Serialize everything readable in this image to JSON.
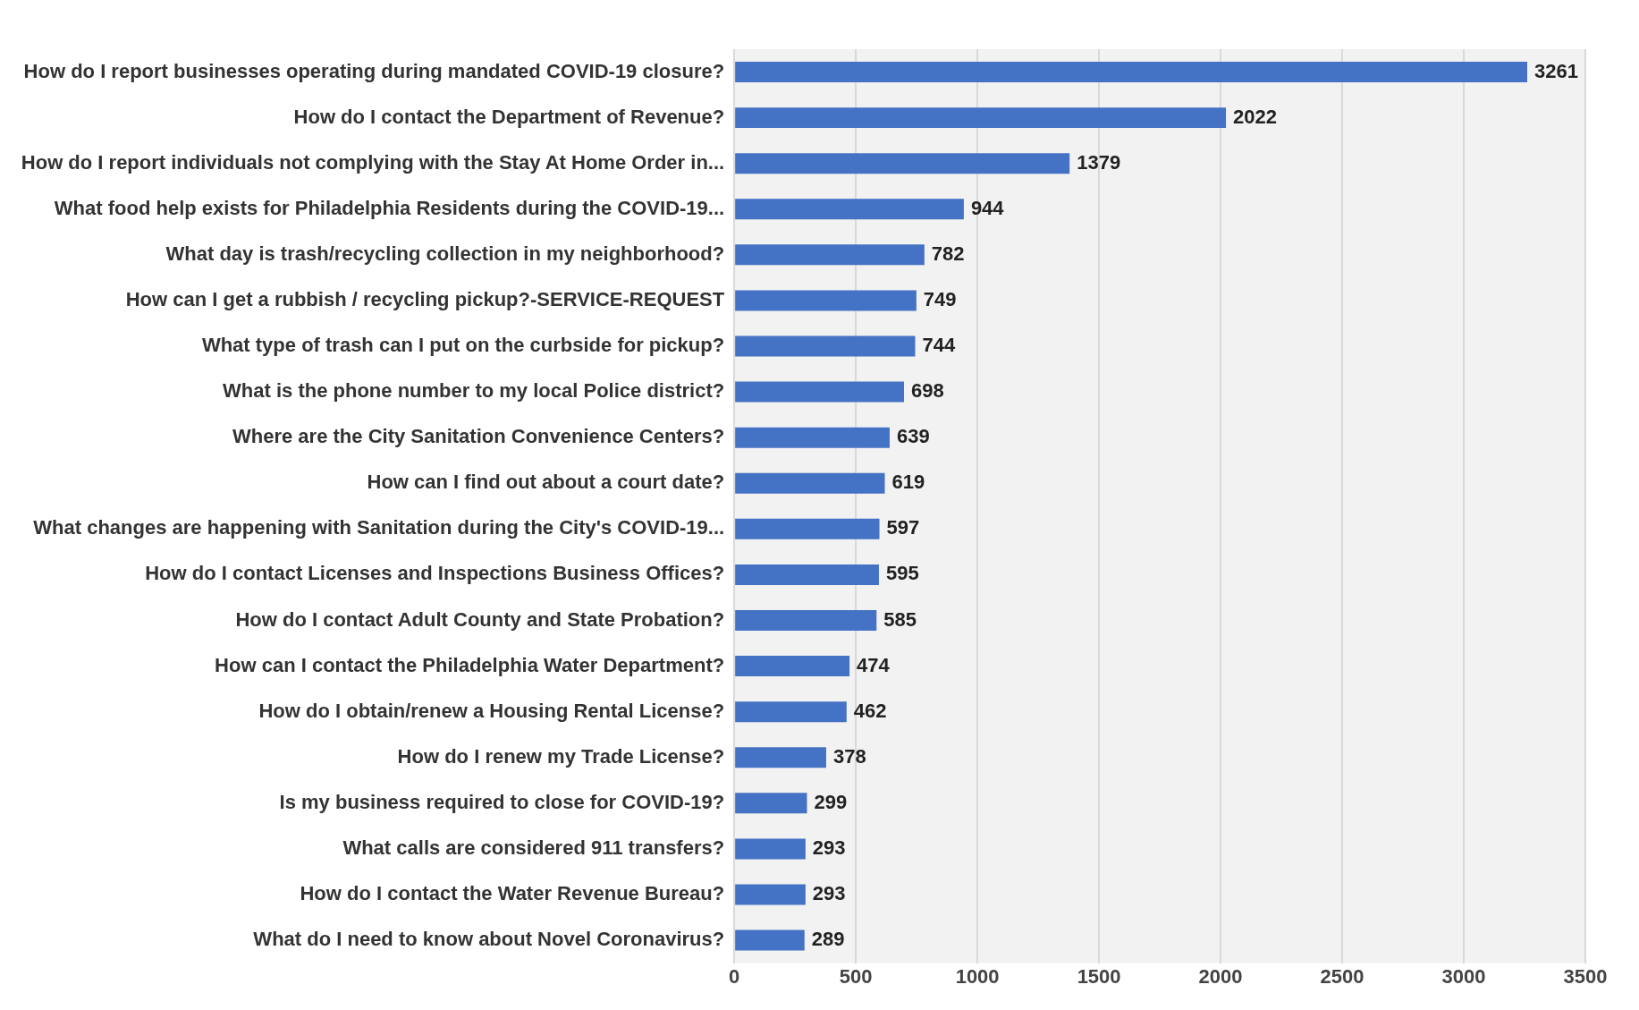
{
  "chart_data": {
    "type": "bar",
    "orientation": "horizontal",
    "categories": [
      "How do I report businesses operating during mandated COVID-19 closure?",
      "How do I contact the Department of Revenue?",
      "How do I report individuals not complying with the Stay At Home Order in...",
      "What food help exists for Philadelphia Residents during the COVID-19...",
      "What day is trash/recycling collection in my neighborhood?",
      "How can I get a rubbish / recycling pickup?-SERVICE-REQUEST",
      "What type of trash can I put on the curbside for pickup?",
      "What is the phone number to my local Police district?",
      "Where are the City Sanitation Convenience Centers?",
      "How can I find out about a court date?",
      "What changes are happening with Sanitation during the City's COVID-19...",
      "How do I contact Licenses and Inspections Business Offices?",
      "How do I contact Adult County and State Probation?",
      "How can I contact the Philadelphia Water Department?",
      "How do I obtain/renew a Housing Rental License?",
      "How do I renew my Trade License?",
      "Is my business required to close for COVID-19?",
      "What calls are considered 911 transfers?",
      "How do I contact the Water Revenue Bureau?",
      "What do I need to know about Novel Coronavirus?"
    ],
    "values": [
      3261,
      2022,
      1379,
      944,
      782,
      749,
      744,
      698,
      639,
      619,
      597,
      595,
      585,
      474,
      462,
      378,
      299,
      293,
      293,
      289
    ],
    "color": "#4472c4",
    "xlim": [
      0,
      3500
    ],
    "xticks": [
      0,
      500,
      1000,
      1500,
      2000,
      2500,
      3000,
      3500
    ],
    "grid": "x",
    "data_labels": true
  }
}
